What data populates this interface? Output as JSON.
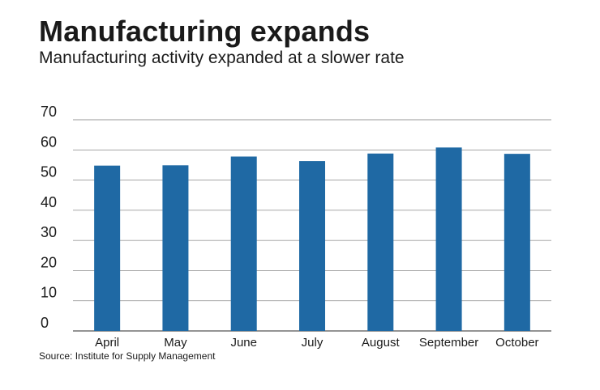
{
  "header": {
    "title": "Manufacturing expands",
    "subtitle": "Manufacturing activity expanded at a slower rate"
  },
  "footer": {
    "source": "Source: Institute for Supply Management"
  },
  "colors": {
    "bar": "#1f69a4",
    "grid": "#9a9a9a",
    "axis": "#555555"
  },
  "chart_data": {
    "type": "bar",
    "title": "Manufacturing expands",
    "subtitle": "Manufacturing activity expanded at a slower rate",
    "xlabel": "",
    "ylabel": "",
    "categories": [
      "April",
      "May",
      "June",
      "July",
      "August",
      "September",
      "October"
    ],
    "values": [
      54.8,
      54.9,
      57.8,
      56.3,
      58.8,
      60.8,
      58.7
    ],
    "ylim": [
      0,
      70
    ],
    "yticks": [
      0,
      10,
      20,
      30,
      40,
      50,
      60,
      70
    ],
    "grid": true,
    "legend": "none"
  }
}
